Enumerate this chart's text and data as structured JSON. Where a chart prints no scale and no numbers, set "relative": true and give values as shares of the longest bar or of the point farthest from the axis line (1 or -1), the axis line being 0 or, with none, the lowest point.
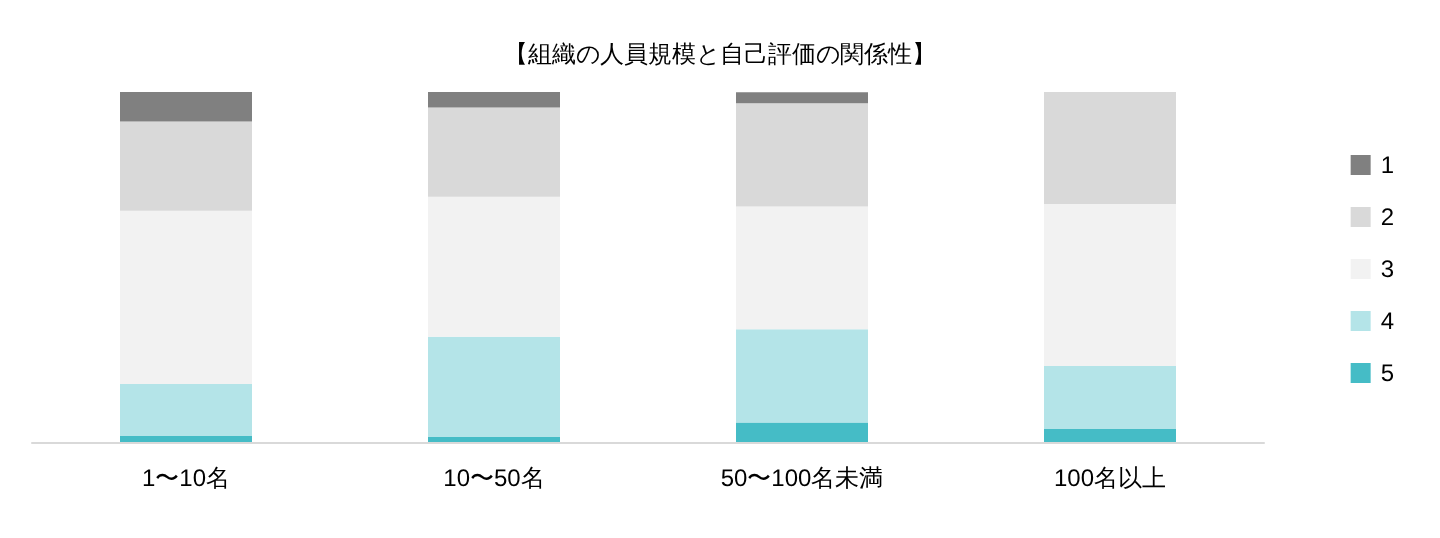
{
  "chart_data": {
    "type": "bar",
    "title": "【組織の人員規模と自己評価の関係性】",
    "categories": [
      "1〜10名",
      "10〜50名",
      "50〜100名未満",
      "100名以上"
    ],
    "stacked": true,
    "relative": true,
    "legend": "right",
    "series": [
      {
        "name": "5",
        "color": "#45bcc6",
        "values": [
          0.017,
          0.014,
          0.056,
          0.037
        ]
      },
      {
        "name": "4",
        "color": "#b4e4e8",
        "values": [
          0.149,
          0.287,
          0.266,
          0.18
        ]
      },
      {
        "name": "3",
        "color": "#f2f2f2",
        "values": [
          0.495,
          0.4,
          0.351,
          0.463
        ]
      },
      {
        "name": "2",
        "color": "#d9d9d9",
        "values": [
          0.255,
          0.255,
          0.295,
          0.32
        ]
      },
      {
        "name": "1",
        "color": "#808080",
        "values": [
          0.084,
          0.044,
          0.031,
          0
        ]
      }
    ]
  }
}
